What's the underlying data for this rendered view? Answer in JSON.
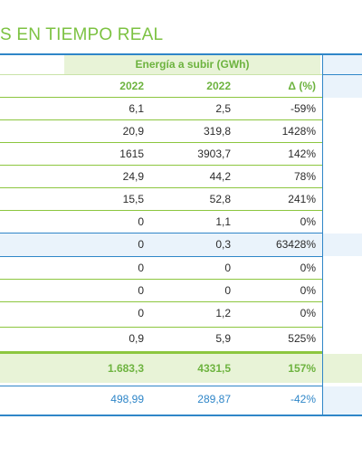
{
  "title": "S EN TIEMPO REAL",
  "group_header": "Energía a subir (GWh)",
  "columns": [
    "2022",
    "2022",
    "Δ (%)"
  ],
  "rows": [
    {
      "a": "6,1",
      "b": "2,5",
      "d": "-59%"
    },
    {
      "a": "20,9",
      "b": "319,8",
      "d": "1428%"
    },
    {
      "a": "1615",
      "b": "3903,7",
      "d": "142%"
    },
    {
      "a": "24,9",
      "b": "44,2",
      "d": "78%"
    },
    {
      "a": "15,5",
      "b": "52,8",
      "d": "241%"
    },
    {
      "a": "0",
      "b": "1,1",
      "d": "0%"
    },
    {
      "a": "0",
      "b": "0,3",
      "d": "63428%"
    },
    {
      "a": "0",
      "b": "0",
      "d": "0%"
    },
    {
      "a": "0",
      "b": "0",
      "d": "0%"
    },
    {
      "a": "0",
      "b": "1,2",
      "d": "0%"
    },
    {
      "a": "0,9",
      "b": "5,9",
      "d": "525%"
    }
  ],
  "total": {
    "a": "1.683,3",
    "b": "4331,5",
    "d": "157%"
  },
  "last": {
    "a": "498,99",
    "b": "289,87",
    "d": "-42%"
  }
}
